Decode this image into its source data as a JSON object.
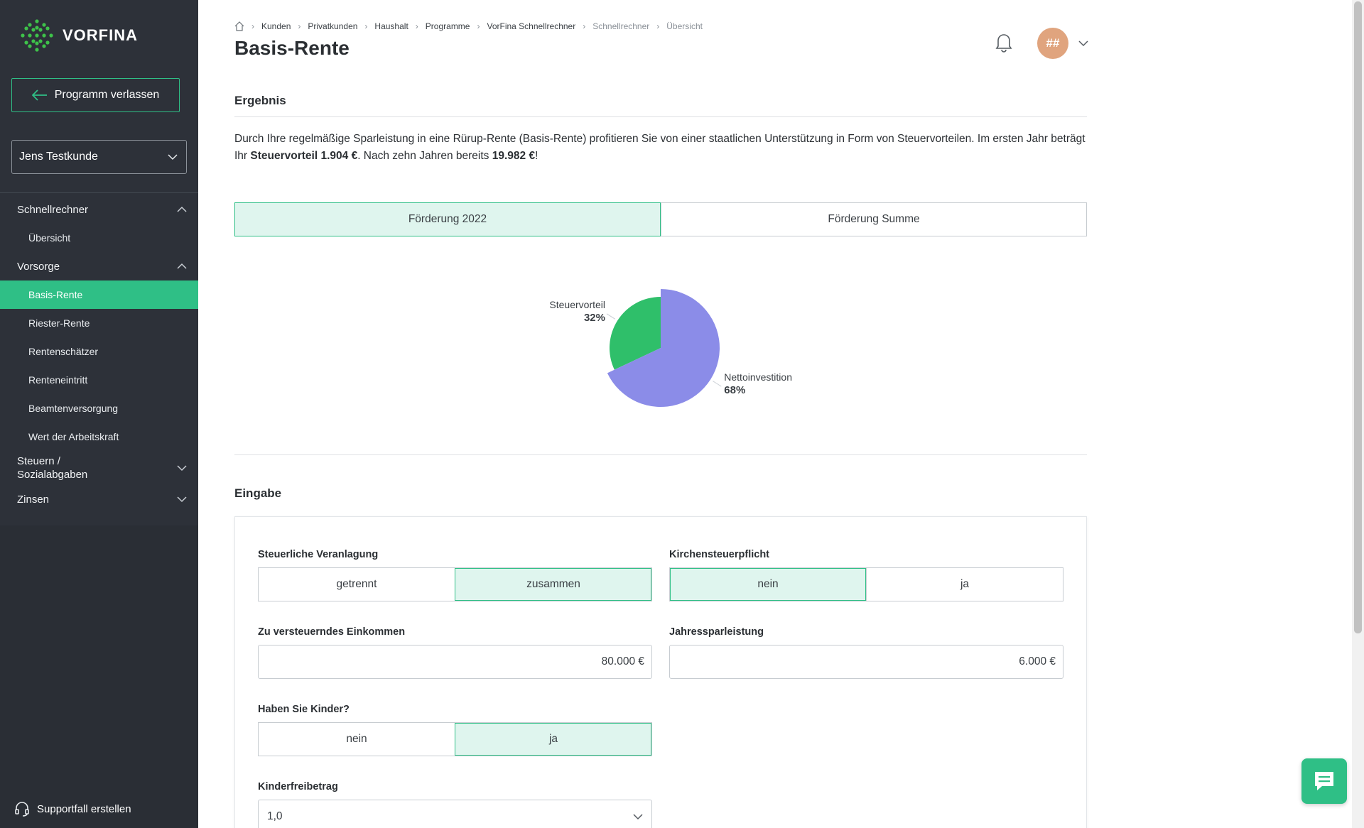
{
  "app": {
    "logo_text": "VORFINA",
    "brand_color": "#2fbf86"
  },
  "sidebar": {
    "leave_button": "Programm verlassen",
    "customer": "Jens Testkunde",
    "sections": [
      {
        "label": "Schnellrechner",
        "expanded": true,
        "items": [
          {
            "label": "Übersicht"
          }
        ]
      },
      {
        "label": "Vorsorge",
        "expanded": true,
        "items": [
          {
            "label": "Basis-Rente",
            "active": true
          },
          {
            "label": "Riester-Rente"
          },
          {
            "label": "Rentenschätzer"
          },
          {
            "label": "Renteneintritt"
          },
          {
            "label": "Beamtenversorgung"
          },
          {
            "label": "Wert der Arbeitskraft"
          }
        ]
      },
      {
        "label": "Steuern / Sozialabgaben",
        "expanded": false
      },
      {
        "label": "Zinsen",
        "expanded": false
      }
    ],
    "support": "Supportfall erstellen"
  },
  "breadcrumb": [
    "Kunden",
    "Privatkunden",
    "Haushalt",
    "Programme",
    "VorFina Schnellrechner",
    "Schnellrechner",
    "Übersicht"
  ],
  "page_title": "Basis-Rente",
  "header": {
    "avatar_initials": "##"
  },
  "result": {
    "title": "Ergebnis",
    "text_1": "Durch Ihre regelmäßige Sparleistung in eine Rürup-Rente (Basis-Rente) profitieren Sie von einer staatlichen Unterstützung in Form von Steuervorteilen. Im ersten Jahr beträgt Ihr ",
    "text_bold_1": "Steuervorteil 1.904 €",
    "text_2": ". Nach zehn Jahren bereits ",
    "text_bold_2": "19.982 €",
    "text_3": "!",
    "tabs": [
      {
        "label": "Förderung 2022",
        "active": true
      },
      {
        "label": "Förderung Summe",
        "active": false
      }
    ]
  },
  "chart_data": {
    "type": "pie",
    "slices": [
      {
        "label": "Steuervorteil",
        "value": 32,
        "display": "32%",
        "color": "#2fbf6a"
      },
      {
        "label": "Nettoinvestition",
        "value": 68,
        "display": "68%",
        "color": "#8b8ce8"
      }
    ]
  },
  "input": {
    "title": "Eingabe",
    "steuerliche_veranlagung": {
      "label": "Steuerliche Veranlagung",
      "options": [
        "getrennt",
        "zusammen"
      ],
      "selected": "zusammen"
    },
    "kirchensteuerpflicht": {
      "label": "Kirchensteuerpflicht",
      "options": [
        "nein",
        "ja"
      ],
      "selected": "nein"
    },
    "einkommen": {
      "label": "Zu versteuerndes Einkommen",
      "value": "80.000 €"
    },
    "jahressparleistung": {
      "label": "Jahressparleistung",
      "value": "6.000 €"
    },
    "kinder": {
      "label": "Haben Sie Kinder?",
      "options": [
        "nein",
        "ja"
      ],
      "selected": "ja"
    },
    "kinderfreibetrag": {
      "label": "Kinderfreibetrag",
      "value": "1,0"
    }
  }
}
